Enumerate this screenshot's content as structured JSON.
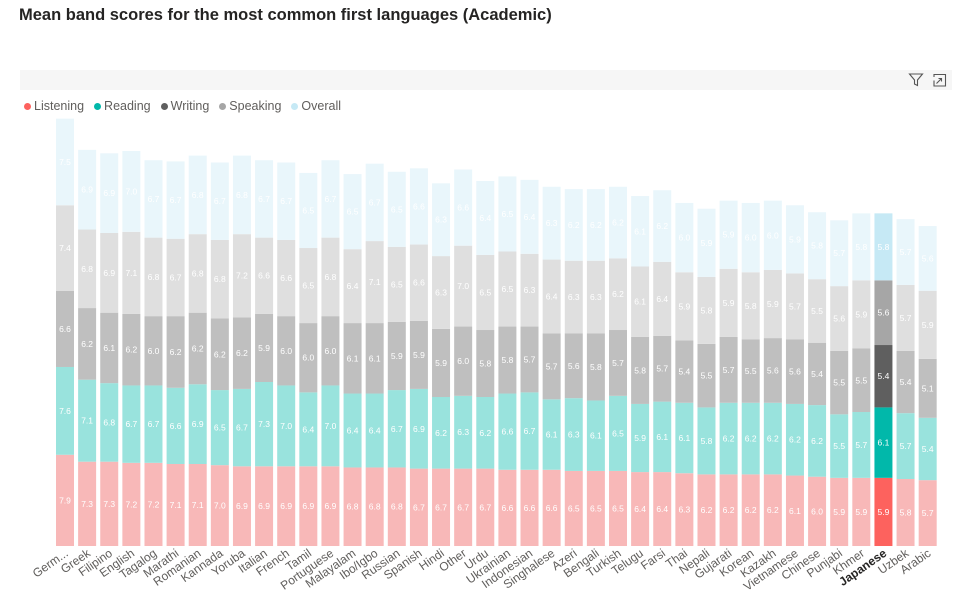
{
  "title": "Mean band scores for the most common first languages (Academic)",
  "toolbar": {
    "filter_icon": "filter-icon",
    "focus_icon": "focus-mode-icon"
  },
  "chart_data": {
    "type": "bar",
    "stacked": true,
    "highlighted_category": "Japanese",
    "legend_position": "top-left",
    "categories": [
      "German",
      "Greek",
      "Filipino",
      "English",
      "Tagalog",
      "Marathi",
      "Romanian",
      "Kannada",
      "Yoruba",
      "Italian",
      "French",
      "Tamil",
      "Portuguese",
      "Malayalam",
      "Ibo/Igbo",
      "Russian",
      "Spanish",
      "Hindi",
      "Other",
      "Urdu",
      "Ukrainian",
      "Indonesian",
      "Singhalese",
      "Azeri",
      "Bengali",
      "Turkish",
      "Telugu",
      "Farsi",
      "Thai",
      "Nepali",
      "Gujarati",
      "Korean",
      "Kazakh",
      "Vietnamese",
      "Chinese",
      "Punjabi",
      "Khmer",
      "Japanese",
      "Uzbek",
      "Arabic"
    ],
    "tick_labels": [
      "Germ...",
      "Greek",
      "Filipino",
      "English",
      "Tagalog",
      "Marathi",
      "Romanian",
      "Kannada",
      "Yoruba",
      "Italian",
      "French",
      "Tamil",
      "Portuguese",
      "Malayalam",
      "Ibo/Igbo",
      "Russian",
      "Spanish",
      "Hindi",
      "Other",
      "Urdu",
      "Ukrainian",
      "Indonesian",
      "Singhalese",
      "Azeri",
      "Bengali",
      "Turkish",
      "Telugu",
      "Farsi",
      "Thai",
      "Nepali",
      "Gujarati",
      "Korean",
      "Kazakh",
      "Vietnamese",
      "Chinese",
      "Punjabi",
      "Khmer",
      "Japanese",
      "Uzbek",
      "Arabic"
    ],
    "series": [
      {
        "name": "Listening",
        "color": "#FD625E",
        "muted_color": "#F8B8B8",
        "values": [
          7.9,
          7.3,
          7.3,
          7.2,
          7.2,
          7.1,
          7.1,
          7.0,
          6.9,
          6.9,
          6.9,
          6.9,
          6.9,
          6.8,
          6.8,
          6.8,
          6.7,
          6.7,
          6.7,
          6.7,
          6.6,
          6.6,
          6.6,
          6.5,
          6.5,
          6.5,
          6.4,
          6.4,
          6.3,
          6.2,
          6.2,
          6.2,
          6.2,
          6.1,
          6.0,
          5.9,
          5.9,
          5.9,
          5.8,
          5.7
        ]
      },
      {
        "name": "Reading",
        "color": "#01B8AA",
        "muted_color": "#99E3DD",
        "values": [
          7.6,
          7.1,
          6.8,
          6.7,
          6.7,
          6.6,
          6.9,
          6.5,
          6.7,
          7.3,
          7.0,
          6.4,
          7.0,
          6.4,
          6.4,
          6.7,
          6.9,
          6.2,
          6.3,
          6.2,
          6.6,
          6.7,
          6.1,
          6.3,
          6.1,
          6.5,
          5.9,
          6.1,
          6.1,
          5.8,
          6.2,
          6.2,
          6.2,
          6.2,
          6.2,
          5.5,
          5.7,
          6.1,
          5.7,
          5.4
        ]
      },
      {
        "name": "Writing",
        "color": "#5F5F5F",
        "muted_color": "#BFBFBF",
        "values": [
          6.6,
          6.2,
          6.1,
          6.2,
          6.0,
          6.2,
          6.2,
          6.2,
          6.2,
          5.9,
          6.0,
          6.0,
          6.0,
          6.1,
          6.1,
          5.9,
          5.9,
          5.9,
          6.0,
          5.8,
          5.8,
          5.7,
          5.7,
          5.6,
          5.8,
          5.7,
          5.8,
          5.7,
          5.4,
          5.5,
          5.7,
          5.5,
          5.6,
          5.6,
          5.4,
          5.5,
          5.5,
          5.4,
          5.4,
          5.1
        ]
      },
      {
        "name": "Speaking",
        "color": "#A6A6A6",
        "muted_color": "#DFDFDF",
        "values": [
          7.4,
          6.8,
          6.9,
          7.1,
          6.8,
          6.7,
          6.8,
          6.8,
          7.2,
          6.6,
          6.6,
          6.5,
          6.8,
          6.4,
          7.1,
          6.5,
          6.6,
          6.3,
          7.0,
          6.5,
          6.5,
          6.3,
          6.4,
          6.3,
          6.3,
          6.2,
          6.1,
          6.4,
          5.9,
          5.8,
          5.9,
          5.8,
          5.9,
          5.7,
          5.5,
          5.6,
          5.9,
          5.6,
          5.7,
          5.9
        ]
      },
      {
        "name": "Overall",
        "color": "#C6E9F5",
        "muted_color": "#E9F6FB",
        "values": [
          7.5,
          6.9,
          6.9,
          7.0,
          6.7,
          6.7,
          6.8,
          6.7,
          6.8,
          6.7,
          6.7,
          6.5,
          6.7,
          6.5,
          6.7,
          6.5,
          6.6,
          6.3,
          6.6,
          6.4,
          6.5,
          6.4,
          6.3,
          6.2,
          6.2,
          6.2,
          6.1,
          6.2,
          6.0,
          5.9,
          5.9,
          6.0,
          6.0,
          5.9,
          5.8,
          5.7,
          5.8,
          5.8,
          5.7,
          5.6
        ]
      }
    ]
  }
}
